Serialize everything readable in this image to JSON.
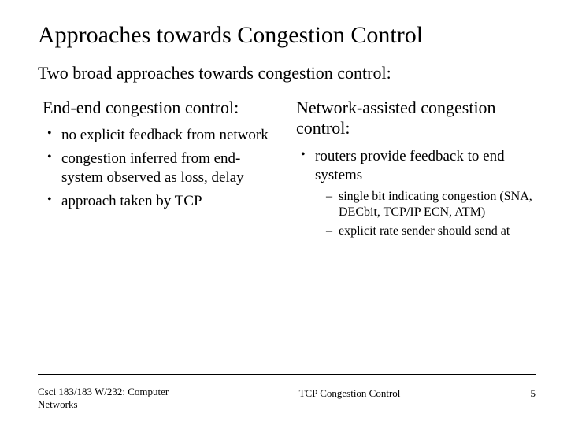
{
  "title": "Approaches towards Congestion Control",
  "subtitle": "Two broad approaches towards congestion control:",
  "left": {
    "heading": "End-end congestion control:",
    "items": [
      "no explicit feedback from network",
      "congestion inferred from end-system observed as loss, delay",
      "approach taken by TCP"
    ]
  },
  "right": {
    "heading": "Network-assisted congestion control:",
    "items": [
      {
        "text": "routers provide feedback to end systems",
        "sub": [
          "single bit indicating congestion (SNA, DECbit, TCP/IP ECN, ATM)",
          "explicit rate sender should send at"
        ]
      }
    ]
  },
  "footer": {
    "left": "Csci 183/183 W/232: Computer Networks",
    "center": "TCP Congestion Control",
    "page": "5"
  },
  "style": {
    "bg": "#ffffff",
    "text": "#000000",
    "title_fontsize": 30,
    "subtitle_fontsize": 22,
    "heading_fontsize": 22,
    "bullet_fontsize": 19,
    "sub_fontsize": 16,
    "footer_fontsize": 13
  }
}
